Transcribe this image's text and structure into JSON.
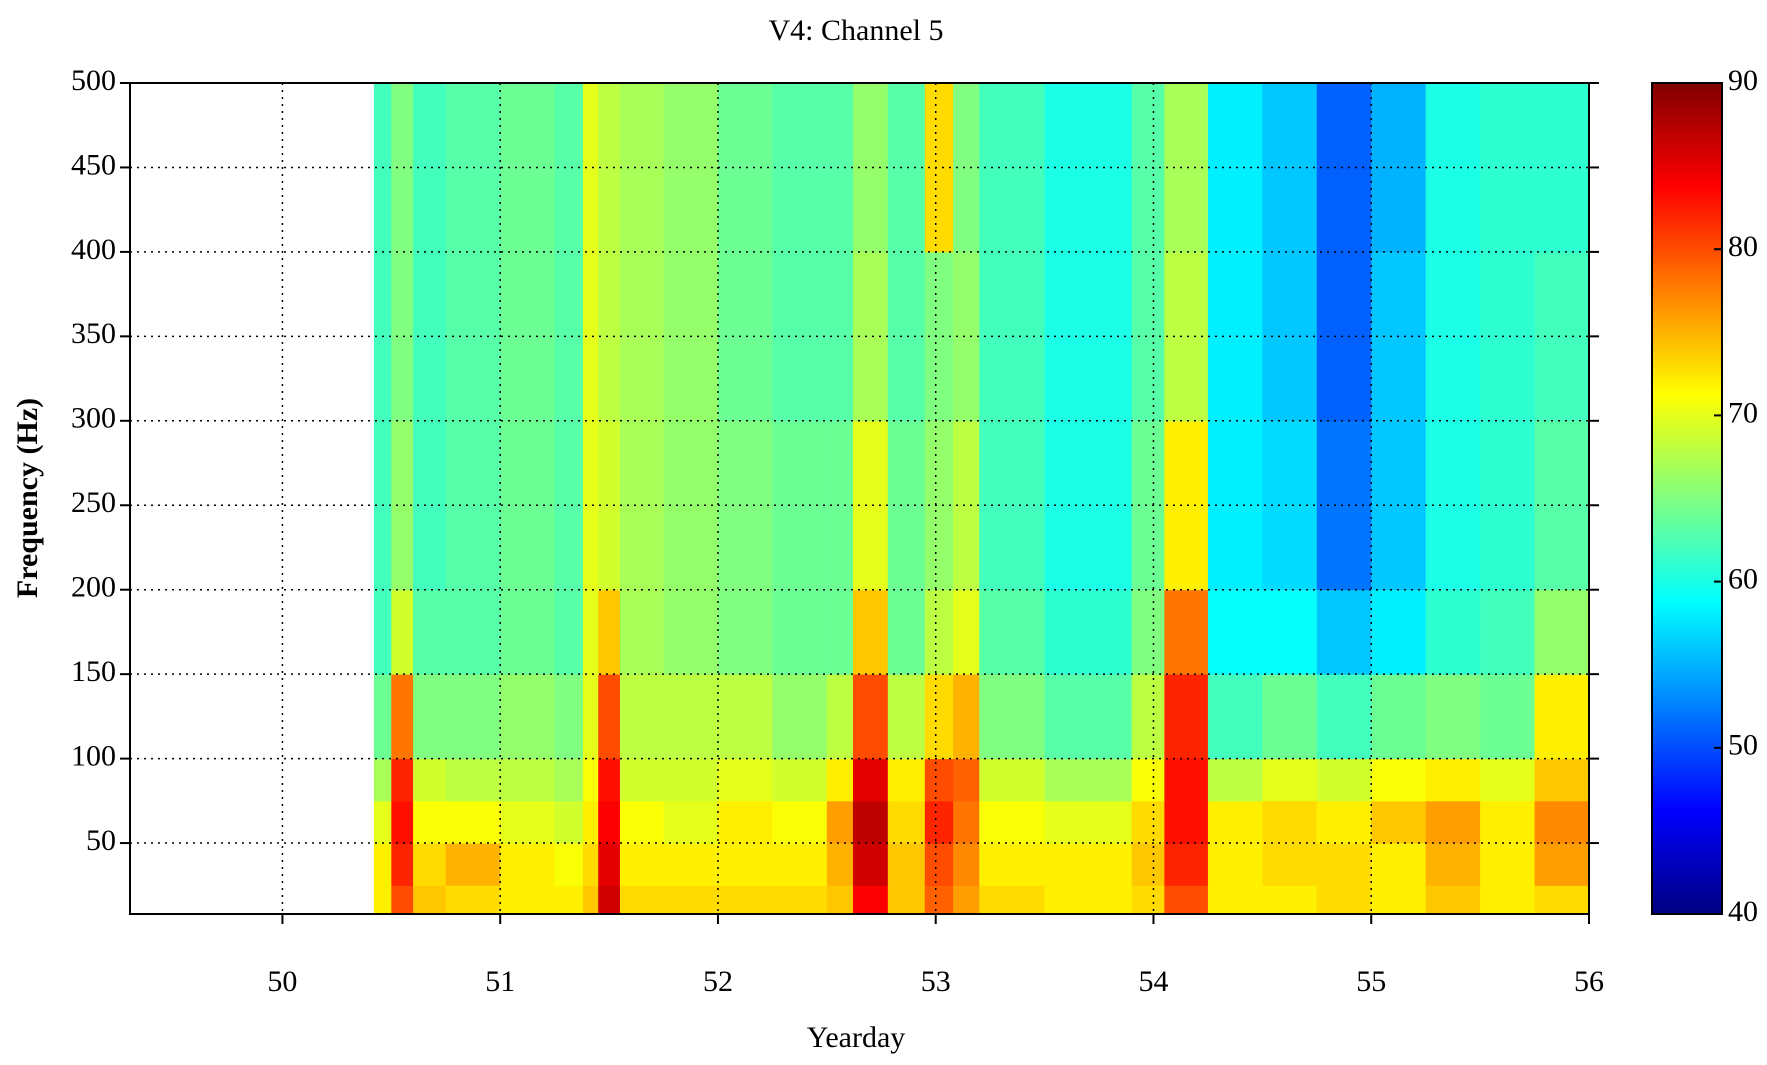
{
  "chart_data": {
    "type": "heatmap",
    "title": "V4: Channel 5",
    "x_label": "Yearday",
    "y_label": "Frequency (Hz)",
    "xlim": [
      49.3,
      56
    ],
    "xticks": [
      50,
      51,
      52,
      53,
      54,
      55,
      56
    ],
    "ylim": [
      8,
      500
    ],
    "yticks": [
      50,
      100,
      150,
      200,
      250,
      300,
      350,
      400,
      450,
      500
    ],
    "grid": true,
    "colormap": "jet",
    "clim": [
      40,
      90
    ],
    "cticks": [
      40,
      50,
      60,
      70,
      80,
      90
    ],
    "x_edges": [
      50.42,
      50.5,
      50.6,
      50.75,
      51.0,
      51.25,
      51.38,
      51.45,
      51.55,
      51.75,
      52.0,
      52.25,
      52.5,
      52.62,
      52.78,
      52.95,
      53.08,
      53.2,
      53.5,
      53.9,
      54.05,
      54.25,
      54.5,
      54.75,
      55.0,
      55.25,
      55.5,
      55.75,
      56.0
    ],
    "y_edges": [
      8,
      25,
      50,
      75,
      100,
      150,
      200,
      300,
      400,
      500
    ],
    "values": [
      [
        72,
        80,
        74,
        73,
        72,
        72,
        74,
        86,
        73,
        73,
        73,
        73,
        74,
        84,
        74,
        79,
        76,
        73,
        72,
        73,
        80,
        72,
        72,
        73,
        72,
        74,
        72,
        73
      ],
      [
        72,
        82,
        73,
        75,
        72,
        71,
        73,
        85,
        72,
        72,
        72,
        72,
        75,
        86,
        74,
        80,
        77,
        72,
        72,
        74,
        82,
        72,
        73,
        73,
        72,
        75,
        72,
        76
      ],
      [
        70,
        83,
        71,
        71,
        70,
        69,
        72,
        84,
        71,
        70,
        72,
        71,
        76,
        87,
        73,
        82,
        78,
        71,
        70,
        73,
        83,
        72,
        73,
        72,
        74,
        76,
        72,
        77
      ],
      [
        67,
        82,
        69,
        68,
        68,
        67,
        71,
        83,
        69,
        69,
        70,
        69,
        72,
        85,
        72,
        80,
        79,
        69,
        67,
        71,
        83,
        68,
        70,
        69,
        71,
        72,
        70,
        74
      ],
      [
        64,
        78,
        65,
        65,
        66,
        65,
        70,
        80,
        68,
        68,
        68,
        66,
        68,
        80,
        68,
        73,
        75,
        65,
        63,
        68,
        82,
        62,
        64,
        62,
        64,
        65,
        64,
        72
      ],
      [
        62,
        69,
        63,
        63,
        64,
        63,
        70,
        74,
        67,
        66,
        65,
        64,
        64,
        74,
        64,
        68,
        70,
        63,
        61,
        65,
        78,
        59,
        59,
        56,
        58,
        61,
        62,
        66
      ],
      [
        62,
        66,
        62,
        63,
        64,
        63,
        70,
        69,
        67,
        66,
        65,
        64,
        64,
        70,
        64,
        66,
        68,
        62,
        60,
        64,
        72,
        58,
        57,
        52,
        56,
        60,
        61,
        63
      ],
      [
        62,
        65,
        62,
        63,
        64,
        63,
        70,
        68,
        67,
        66,
        64,
        63,
        63,
        67,
        63,
        65,
        66,
        62,
        60,
        63,
        68,
        58,
        56,
        51,
        56,
        60,
        61,
        62
      ],
      [
        62,
        65,
        62,
        63,
        64,
        63,
        70,
        68,
        67,
        66,
        64,
        63,
        63,
        66,
        63,
        73,
        65,
        62,
        60,
        63,
        67,
        58,
        56,
        51,
        55,
        60,
        61,
        61
      ]
    ]
  }
}
